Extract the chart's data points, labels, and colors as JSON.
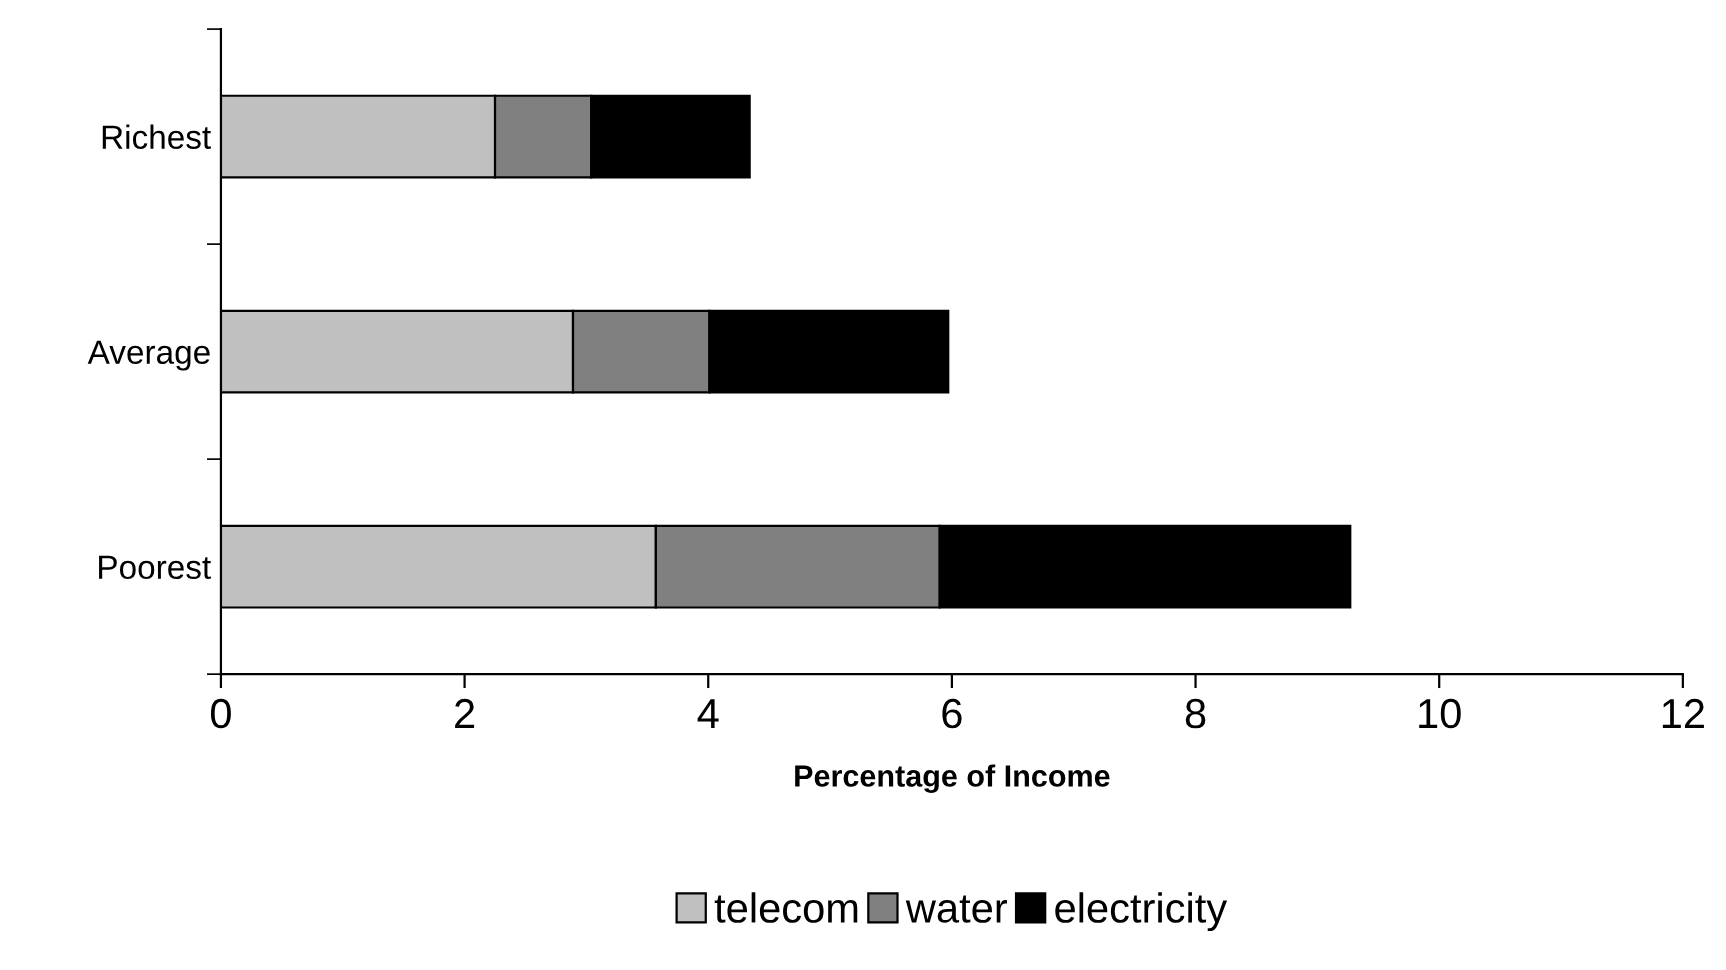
{
  "chart_data": {
    "type": "bar",
    "orientation": "horizontal",
    "stacked": true,
    "xlabel": "Percentage of Income",
    "categories": [
      "Richest",
      "Average",
      "Poorest"
    ],
    "series": [
      {
        "name": "telecom",
        "color": "#c0c0c0",
        "values": [
          2.25,
          2.89,
          3.57
        ]
      },
      {
        "name": "water",
        "color": "#808080",
        "values": [
          0.79,
          1.12,
          2.33
        ]
      },
      {
        "name": "electricity",
        "color": "#000000",
        "values": [
          1.3,
          1.96,
          3.37
        ]
      }
    ],
    "xlim": [
      0,
      12
    ],
    "xticks": [
      0,
      2,
      4,
      6,
      8,
      10,
      12
    ],
    "grid": false,
    "legend": "bottom"
  }
}
